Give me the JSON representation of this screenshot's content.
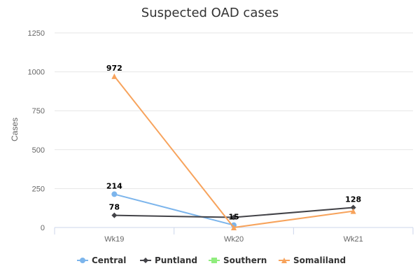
{
  "chart_data": {
    "type": "line",
    "title": "Suspected OAD cases",
    "xlabel": "",
    "ylabel": "Cases",
    "categories": [
      "Wk19",
      "Wk20",
      "Wk21"
    ],
    "ylim": [
      0,
      1250
    ],
    "yticks": [
      0,
      250,
      500,
      750,
      1000,
      1250
    ],
    "grid": true,
    "legend_position": "bottom",
    "series": [
      {
        "name": "Central",
        "color": "#7cb5ec",
        "marker": "circle",
        "values": [
          214,
          15,
          null
        ],
        "labels": [
          "214",
          "15",
          ""
        ]
      },
      {
        "name": "Puntland",
        "color": "#434348",
        "marker": "diamond",
        "values": [
          78,
          65,
          128
        ],
        "labels": [
          "78",
          "",
          "128"
        ]
      },
      {
        "name": "Southern",
        "color": "#90ed7d",
        "marker": "square",
        "values": [
          null,
          null,
          null
        ],
        "labels": [
          "",
          "",
          ""
        ]
      },
      {
        "name": "Somaliland",
        "color": "#f7a35c",
        "marker": "triangle",
        "values": [
          972,
          0,
          105
        ],
        "labels": [
          "972",
          "",
          ""
        ]
      }
    ]
  }
}
